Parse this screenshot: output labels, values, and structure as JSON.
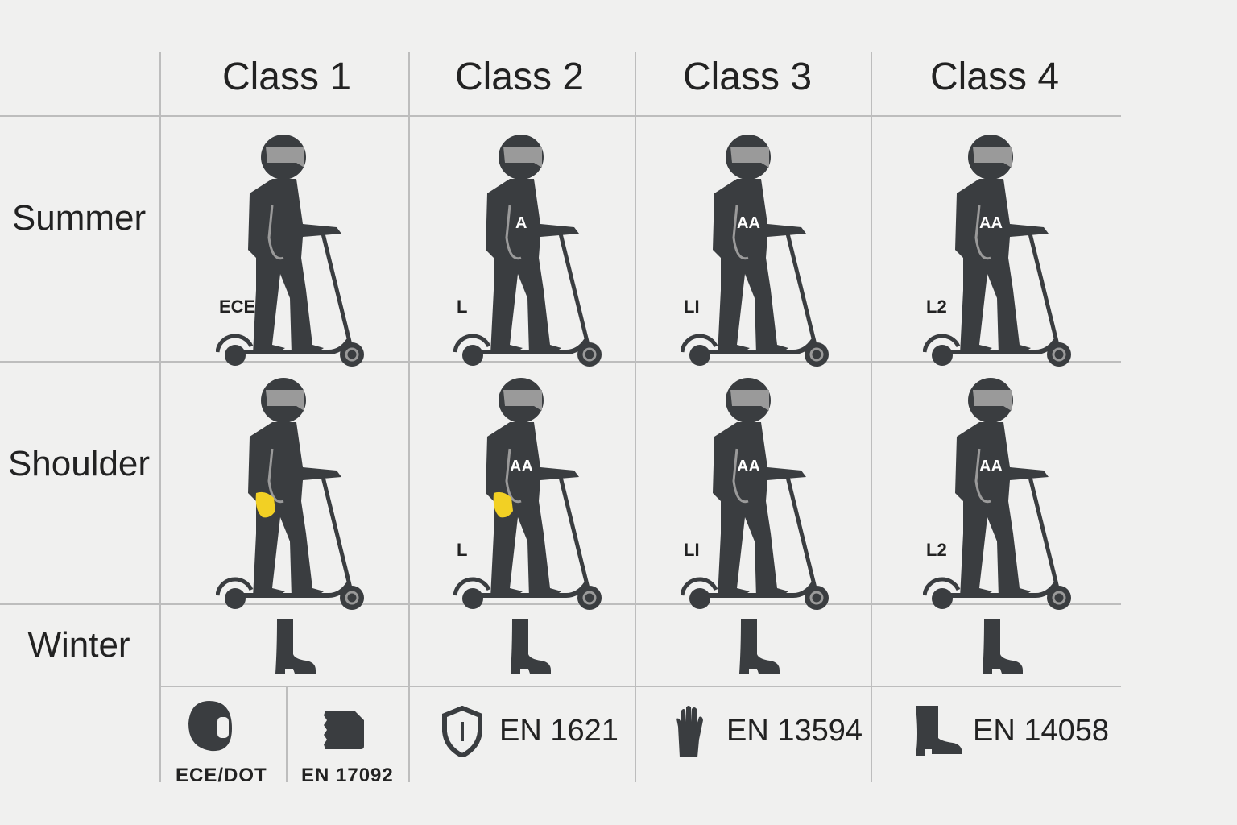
{
  "columns": [
    "Class 1",
    "Class 2",
    "Class 3",
    "Class 4"
  ],
  "rows": [
    "Summer",
    "Shoulder",
    "Winter"
  ],
  "colors": {
    "figure": "#3a3d40",
    "visor": "#9a9a9a",
    "glove": "#f2d024",
    "grid": "#bdbdbd",
    "background": "#f0f0ef"
  },
  "cells": {
    "summer": [
      {
        "leg_label": "ECE",
        "torso_label": "",
        "gloves": false
      },
      {
        "leg_label": "L",
        "torso_label": "A",
        "gloves": false
      },
      {
        "leg_label": "LI",
        "torso_label": "AA",
        "gloves": false
      },
      {
        "leg_label": "L2",
        "torso_label": "AA",
        "gloves": false
      }
    ],
    "shoulder": [
      {
        "leg_label": "",
        "torso_label": "",
        "gloves": true
      },
      {
        "leg_label": "L",
        "torso_label": "AA",
        "gloves": true
      },
      {
        "leg_label": "LI",
        "torso_label": "AA",
        "gloves": false
      },
      {
        "leg_label": "L2",
        "torso_label": "AA",
        "gloves": false
      }
    ]
  },
  "legend": [
    {
      "icon": "helmet-icon",
      "label": "ECE/DOT"
    },
    {
      "icon": "back-protector-icon",
      "label": "EN 17092"
    },
    {
      "icon": "shield-icon",
      "label": "EN 1621"
    },
    {
      "icon": "glove-icon",
      "label": "EN 13594"
    },
    {
      "icon": "boot-icon",
      "label": "EN 14058"
    }
  ]
}
